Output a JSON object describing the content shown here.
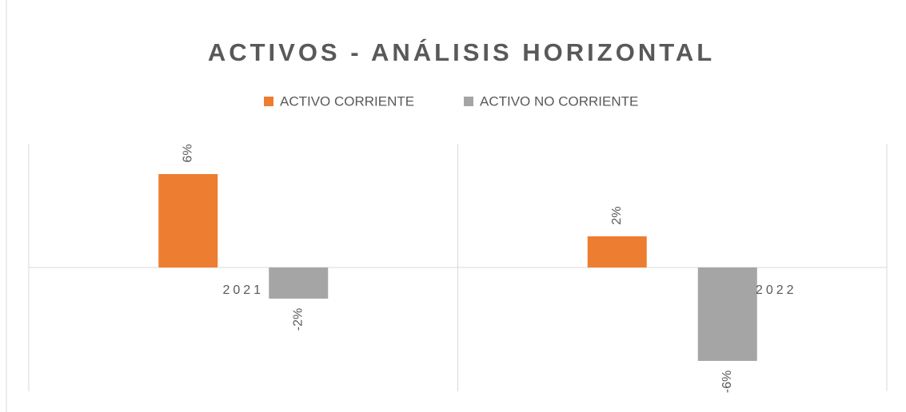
{
  "chart_data": {
    "type": "bar",
    "title": "ACTIVOS - ANÁLISIS HORIZONTAL",
    "categories": [
      "2021",
      "2022"
    ],
    "series": [
      {
        "name": "ACTIVO CORRIENTE",
        "color": "#ed7d31",
        "values": [
          6,
          2
        ],
        "value_labels": [
          "6%",
          "2%"
        ]
      },
      {
        "name": "ACTIVO NO CORRIENTE",
        "color": "#a5a5a5",
        "values": [
          -2,
          -6
        ],
        "value_labels": [
          "-2%",
          "-6%"
        ]
      }
    ],
    "legend": "top"
  }
}
